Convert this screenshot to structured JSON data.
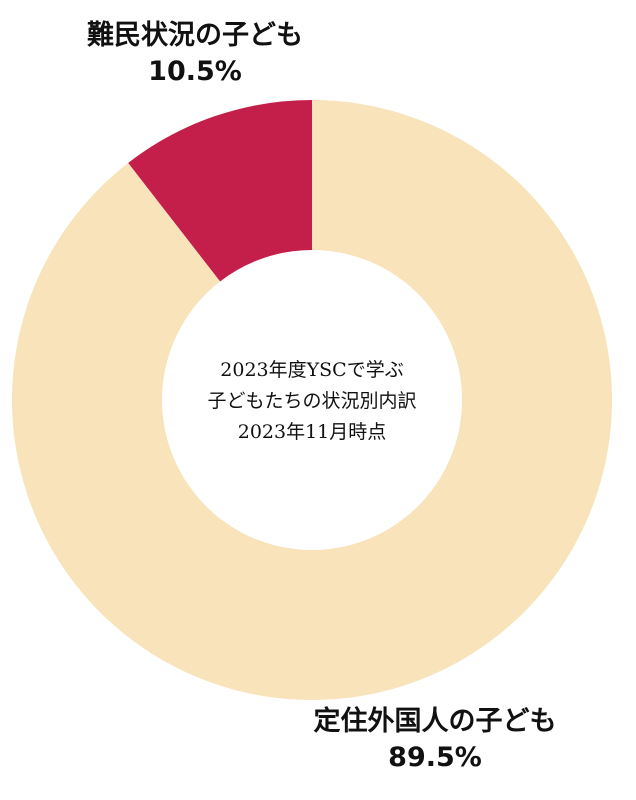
{
  "chart_data": {
    "type": "pie",
    "donut": true,
    "title_lines": [
      "2023年度YSCで学ぶ",
      "子どもたちの状況別内訳",
      "2023年11月時点"
    ],
    "slices": [
      {
        "label": "難民状況の子ども",
        "value": 10.5,
        "display": "10.5%",
        "color": "#C41E4A"
      },
      {
        "label": "定住外国人の子ども",
        "value": 89.5,
        "display": "89.5%",
        "color": "#F9E3BA"
      }
    ],
    "start_angle": "12 o'clock",
    "direction": "counterclockwise"
  }
}
